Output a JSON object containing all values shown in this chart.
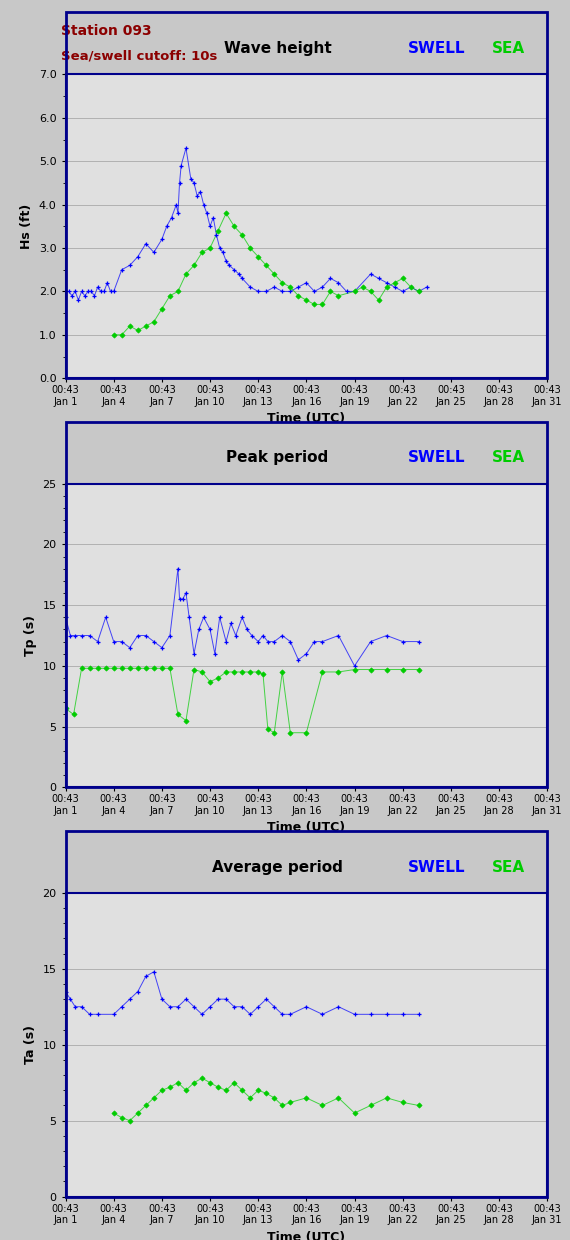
{
  "title1": "Wave height",
  "title2": "Peak period",
  "title3": "Average period",
  "station_text": "Station 093",
  "cutoff_text": "Sea/swell cutoff: 10s",
  "ylabel1": "Hs (ft)",
  "ylabel2": "Tp (s)",
  "ylabel3": "Ta (s)",
  "xlabel": "Time (UTC)",
  "swell_color": "#0000ff",
  "sea_color": "#00cc00",
  "bg_color": "#c8c8c8",
  "plot_bg_color": "#e0e0e0",
  "border_color": "#00008b",
  "ylim1": [
    0.0,
    7.0
  ],
  "yticks1": [
    0.0,
    1.0,
    2.0,
    3.0,
    4.0,
    5.0,
    6.0,
    7.0
  ],
  "ylim2": [
    0,
    25
  ],
  "yticks2": [
    0,
    5,
    10,
    15,
    20,
    25
  ],
  "ylim3": [
    0,
    20
  ],
  "yticks3": [
    0,
    5,
    10,
    15,
    20
  ],
  "xstart": 0,
  "xend": 30,
  "xticks": [
    0,
    3,
    6,
    9,
    12,
    15,
    18,
    21,
    24,
    27,
    30
  ],
  "xticklabels": [
    "00:43\nJan 1",
    "00:43\nJan 4",
    "00:43\nJan 7",
    "00:43\nJan 10",
    "00:43\nJan 13",
    "00:43\nJan 16",
    "00:43\nJan 19",
    "00:43\nJan 22",
    "00:43\nJan 25",
    "00:43\nJan 28",
    "00:43\nJan 31"
  ],
  "swell_hs_x": [
    0.0,
    0.2,
    0.4,
    0.6,
    0.8,
    1.0,
    1.2,
    1.4,
    1.6,
    1.8,
    2.0,
    2.2,
    2.4,
    2.6,
    2.8,
    3.0,
    3.5,
    4.0,
    4.5,
    5.0,
    5.5,
    6.0,
    6.3,
    6.6,
    6.9,
    7.0,
    7.1,
    7.2,
    7.5,
    7.8,
    8.0,
    8.2,
    8.4,
    8.6,
    8.8,
    9.0,
    9.2,
    9.4,
    9.6,
    9.8,
    10.0,
    10.2,
    10.5,
    10.8,
    11.0,
    11.5,
    12.0,
    12.5,
    13.0,
    13.5,
    14.0,
    14.5,
    15.0,
    15.5,
    16.0,
    16.5,
    17.0,
    17.5,
    18.0,
    19.0,
    19.5,
    20.0,
    20.5,
    21.0,
    21.5,
    22.0,
    22.5
  ],
  "swell_hs_y": [
    2.0,
    2.0,
    1.9,
    2.0,
    1.8,
    2.0,
    1.9,
    2.0,
    2.0,
    1.9,
    2.1,
    2.0,
    2.0,
    2.2,
    2.0,
    2.0,
    2.5,
    2.6,
    2.8,
    3.1,
    2.9,
    3.2,
    3.5,
    3.7,
    4.0,
    3.8,
    4.5,
    4.9,
    5.3,
    4.6,
    4.5,
    4.2,
    4.3,
    4.0,
    3.8,
    3.5,
    3.7,
    3.3,
    3.0,
    2.9,
    2.7,
    2.6,
    2.5,
    2.4,
    2.3,
    2.1,
    2.0,
    2.0,
    2.1,
    2.0,
    2.0,
    2.1,
    2.2,
    2.0,
    2.1,
    2.3,
    2.2,
    2.0,
    2.0,
    2.4,
    2.3,
    2.2,
    2.1,
    2.0,
    2.1,
    2.0,
    2.1
  ],
  "sea_hs_x": [
    3.0,
    3.5,
    4.0,
    4.5,
    5.0,
    5.5,
    6.0,
    6.5,
    7.0,
    7.5,
    8.0,
    8.5,
    9.0,
    9.5,
    10.0,
    10.5,
    11.0,
    11.5,
    12.0,
    12.5,
    13.0,
    13.5,
    14.0,
    14.5,
    15.0,
    15.5,
    16.0,
    16.5,
    17.0,
    18.0,
    18.5,
    19.0,
    19.5,
    20.0,
    20.5,
    21.0,
    21.5,
    22.0
  ],
  "sea_hs_y": [
    1.0,
    1.0,
    1.2,
    1.1,
    1.2,
    1.3,
    1.6,
    1.9,
    2.0,
    2.4,
    2.6,
    2.9,
    3.0,
    3.4,
    3.8,
    3.5,
    3.3,
    3.0,
    2.8,
    2.6,
    2.4,
    2.2,
    2.1,
    1.9,
    1.8,
    1.7,
    1.7,
    2.0,
    1.9,
    2.0,
    2.1,
    2.0,
    1.8,
    2.1,
    2.2,
    2.3,
    2.1,
    2.0
  ],
  "swell_tp_x": [
    0.0,
    0.3,
    0.6,
    1.0,
    1.5,
    2.0,
    2.5,
    3.0,
    3.5,
    4.0,
    4.5,
    5.0,
    5.5,
    6.0,
    6.5,
    7.0,
    7.1,
    7.3,
    7.5,
    7.7,
    8.0,
    8.3,
    8.6,
    9.0,
    9.3,
    9.6,
    10.0,
    10.3,
    10.6,
    11.0,
    11.3,
    11.6,
    12.0,
    12.3,
    12.6,
    13.0,
    13.5,
    14.0,
    14.5,
    15.0,
    15.5,
    16.0,
    17.0,
    18.0,
    19.0,
    20.0,
    21.0,
    22.0
  ],
  "swell_tp_y": [
    14.0,
    12.5,
    12.5,
    12.5,
    12.5,
    12.0,
    14.0,
    12.0,
    12.0,
    11.5,
    12.5,
    12.5,
    12.0,
    11.5,
    12.5,
    18.0,
    15.5,
    15.5,
    16.0,
    14.0,
    11.0,
    13.0,
    14.0,
    13.0,
    11.0,
    14.0,
    12.0,
    13.5,
    12.5,
    14.0,
    13.0,
    12.5,
    12.0,
    12.5,
    12.0,
    12.0,
    12.5,
    12.0,
    10.5,
    11.0,
    12.0,
    12.0,
    12.5,
    10.0,
    12.0,
    12.5,
    12.0,
    12.0
  ],
  "sea_tp_x": [
    0.0,
    0.5,
    1.0,
    1.5,
    2.0,
    2.5,
    3.0,
    3.5,
    4.0,
    4.5,
    5.0,
    5.5,
    6.0,
    6.5,
    7.0,
    7.5,
    8.0,
    8.5,
    9.0,
    9.5,
    10.0,
    10.5,
    11.0,
    11.5,
    12.0,
    12.3,
    12.6,
    13.0,
    13.5,
    14.0,
    15.0,
    16.0,
    17.0,
    18.0,
    19.0,
    20.0,
    21.0,
    22.0
  ],
  "sea_tp_y": [
    6.5,
    6.0,
    9.8,
    9.8,
    9.8,
    9.8,
    9.8,
    9.8,
    9.8,
    9.8,
    9.8,
    9.8,
    9.8,
    9.8,
    6.0,
    5.5,
    9.7,
    9.5,
    8.7,
    9.0,
    9.5,
    9.5,
    9.5,
    9.5,
    9.5,
    9.3,
    4.8,
    4.5,
    9.5,
    4.5,
    4.5,
    9.5,
    9.5,
    9.7,
    9.7,
    9.7,
    9.7,
    9.7
  ],
  "swell_ta_x": [
    0.0,
    0.3,
    0.6,
    1.0,
    1.5,
    2.0,
    3.0,
    3.5,
    4.0,
    4.5,
    5.0,
    5.5,
    6.0,
    6.5,
    7.0,
    7.5,
    8.0,
    8.5,
    9.0,
    9.5,
    10.0,
    10.5,
    11.0,
    11.5,
    12.0,
    12.5,
    13.0,
    13.5,
    14.0,
    15.0,
    16.0,
    17.0,
    18.0,
    19.0,
    20.0,
    21.0,
    22.0
  ],
  "swell_ta_y": [
    13.5,
    13.0,
    12.5,
    12.5,
    12.0,
    12.0,
    12.0,
    12.5,
    13.0,
    13.5,
    14.5,
    14.8,
    13.0,
    12.5,
    12.5,
    13.0,
    12.5,
    12.0,
    12.5,
    13.0,
    13.0,
    12.5,
    12.5,
    12.0,
    12.5,
    13.0,
    12.5,
    12.0,
    12.0,
    12.5,
    12.0,
    12.5,
    12.0,
    12.0,
    12.0,
    12.0,
    12.0
  ],
  "sea_ta_x": [
    3.0,
    3.5,
    4.0,
    4.5,
    5.0,
    5.5,
    6.0,
    6.5,
    7.0,
    7.5,
    8.0,
    8.5,
    9.0,
    9.5,
    10.0,
    10.5,
    11.0,
    11.5,
    12.0,
    12.5,
    13.0,
    13.5,
    14.0,
    15.0,
    16.0,
    17.0,
    18.0,
    19.0,
    20.0,
    21.0,
    22.0
  ],
  "sea_ta_y": [
    5.5,
    5.2,
    5.0,
    5.5,
    6.0,
    6.5,
    7.0,
    7.2,
    7.5,
    7.0,
    7.5,
    7.8,
    7.5,
    7.2,
    7.0,
    7.5,
    7.0,
    6.5,
    7.0,
    6.8,
    6.5,
    6.0,
    6.2,
    6.5,
    6.0,
    6.5,
    5.5,
    6.0,
    6.5,
    6.2,
    6.0
  ]
}
